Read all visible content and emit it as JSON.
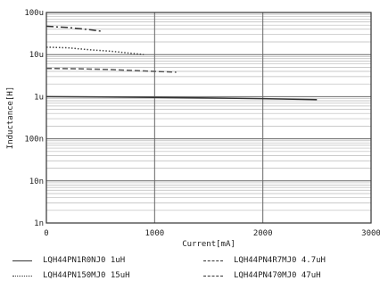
{
  "chart_data": {
    "type": "line",
    "xlabel": "Current[mA]",
    "ylabel": "Inductance[H]",
    "xlim": [
      0,
      3000
    ],
    "x_ticks": [
      {
        "value": 0,
        "label": "0"
      },
      {
        "value": 1000,
        "label": "1000"
      },
      {
        "value": 2000,
        "label": "2000"
      },
      {
        "value": 3000,
        "label": "3000"
      }
    ],
    "y_scale": "log",
    "ylim": [
      1e-12,
      0.0001
    ],
    "y_ticks": [
      {
        "value": 0.0001,
        "label": "100u"
      },
      {
        "value": 1e-05,
        "label": "10u"
      },
      {
        "value": 1e-06,
        "label": "1u"
      },
      {
        "value": 1e-07,
        "label": "100n"
      },
      {
        "value": 1e-08,
        "label": "10n"
      },
      {
        "value": 1e-09,
        "label": "1n"
      }
    ],
    "grid": true,
    "legend_position": "bottom",
    "series": [
      {
        "name": "LQH44PN1R0NJ0 1uH",
        "style": "solid",
        "color": "#333333",
        "x": [
          0,
          500,
          1000,
          1500,
          2000,
          2500
        ],
        "y": [
          1e-06,
          9.8e-07,
          9.6e-07,
          9.3e-07,
          9e-07,
          8.5e-07
        ]
      },
      {
        "name": "LQH44PN4R7MJ0 4.7uH",
        "style": "dashed",
        "color": "#555555",
        "x": [
          0,
          300,
          600,
          900,
          1200
        ],
        "y": [
          4.7e-06,
          4.6e-06,
          4.4e-06,
          4.1e-06,
          3.8e-06
        ]
      },
      {
        "name": "LQH44PN150MJ0 15uH",
        "style": "dotted",
        "color": "#444444",
        "x": [
          0,
          200,
          400,
          600,
          900
        ],
        "y": [
          1.5e-05,
          1.45e-05,
          1.3e-05,
          1.2e-05,
          1e-05
        ]
      },
      {
        "name": "LQH44PN470MJ0 47uH",
        "style": "dashdot",
        "color": "#333333",
        "x": [
          0,
          200,
          400,
          500
        ],
        "y": [
          4.7e-05,
          4.4e-05,
          3.9e-05,
          3.6e-05
        ]
      }
    ]
  }
}
